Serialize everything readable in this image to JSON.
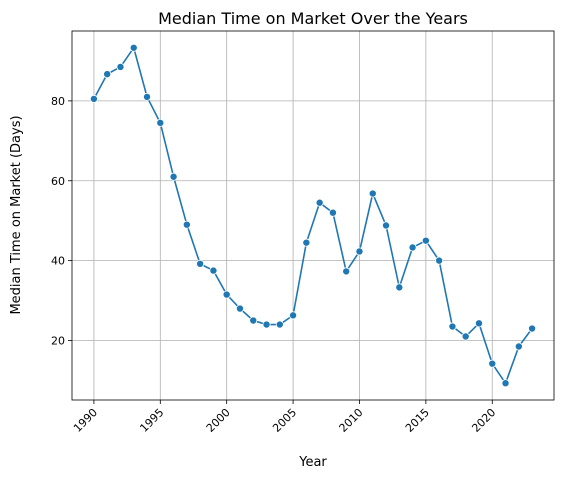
{
  "chart_data": {
    "type": "line",
    "title": "Median Time on Market Over the Years",
    "xlabel": "Year",
    "ylabel": "Median Time on Market (Days)",
    "x": [
      1990,
      1991,
      1992,
      1993,
      1994,
      1995,
      1996,
      1997,
      1998,
      1999,
      2000,
      2001,
      2002,
      2003,
      2004,
      2005,
      2006,
      2007,
      2008,
      2009,
      2010,
      2011,
      2012,
      2013,
      2014,
      2015,
      2016,
      2017,
      2018,
      2019,
      2020,
      2021,
      2022,
      2023
    ],
    "series": [
      {
        "values": [
          80.5,
          86.7,
          88.5,
          93.3,
          81.0,
          74.5,
          61.0,
          49.0,
          39.2,
          37.5,
          31.5,
          28.0,
          25.0,
          24.0,
          24.0,
          26.3,
          44.5,
          54.5,
          52.0,
          37.3,
          42.3,
          56.8,
          48.8,
          33.3,
          43.3,
          45.0,
          40.0,
          23.5,
          21.0,
          24.3,
          14.2,
          9.3,
          18.5,
          23.0
        ],
        "color": "#1f77b4",
        "marker": "circle"
      }
    ],
    "xticks": [
      1990,
      1995,
      2000,
      2005,
      2010,
      2015,
      2020
    ],
    "yticks": [
      20,
      40,
      60,
      80
    ],
    "xlim": [
      1988.35,
      2024.65
    ],
    "ylim": [
      5.1,
      97.5
    ],
    "xtick_rotation": 45,
    "grid": true
  }
}
